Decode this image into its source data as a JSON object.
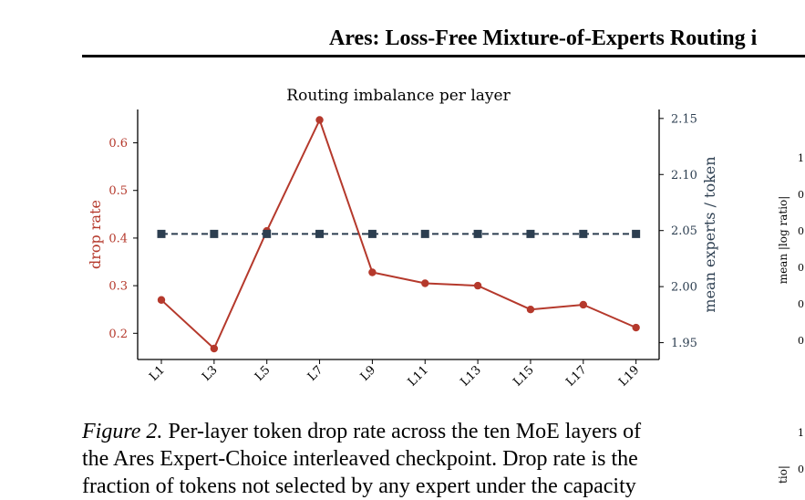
{
  "header": {
    "title": "Ares: Loss-Free Mixture-of-Experts Routing i"
  },
  "chart_data": {
    "type": "line",
    "title": "Routing imbalance per layer",
    "categories": [
      "L1",
      "L3",
      "L5",
      "L7",
      "L9",
      "L11",
      "L13",
      "L15",
      "L17",
      "L19"
    ],
    "series": [
      {
        "axis": "left",
        "color": "#b5392c",
        "style": "solid",
        "marker": "circle",
        "values": [
          0.27,
          0.168,
          0.415,
          0.648,
          0.328,
          0.305,
          0.3,
          0.25,
          0.26,
          0.212
        ]
      },
      {
        "axis": "right",
        "color": "#2c3e50",
        "style": "dashed",
        "marker": "square",
        "values": [
          2.047,
          2.047,
          2.047,
          2.047,
          2.047,
          2.047,
          2.047,
          2.047,
          2.047,
          2.047
        ]
      }
    ],
    "ylabel": "drop rate",
    "y2label": "mean experts / token",
    "yticks": [
      "0.2",
      "0.3",
      "0.4",
      "0.5",
      "0.6"
    ],
    "ylim": [
      0.145,
      0.67
    ],
    "y2ticks": [
      "1.95",
      "2.00",
      "2.05",
      "2.10",
      "2.15"
    ],
    "y2lim": [
      1.935,
      2.158
    ],
    "grid": false,
    "left_axis_color": "#b5392c",
    "right_axis_color": "#2c3e50"
  },
  "caption": {
    "label": "Figure 2.",
    "line1": " Per-layer token drop rate across the ten MoE layers of",
    "line2": "the Ares Expert-Choice interleaved checkpoint. Drop rate is the",
    "line3": "fraction of tokens not selected by any expert under the capacity"
  },
  "right_panel": {
    "ylabel": "mean |log ratio|",
    "ticks": [
      "1.",
      "0.",
      "0.",
      "0.",
      "0.",
      "0."
    ],
    "ticks_lower": [
      "1.",
      "0."
    ],
    "ylabel_lower": "tio|"
  }
}
